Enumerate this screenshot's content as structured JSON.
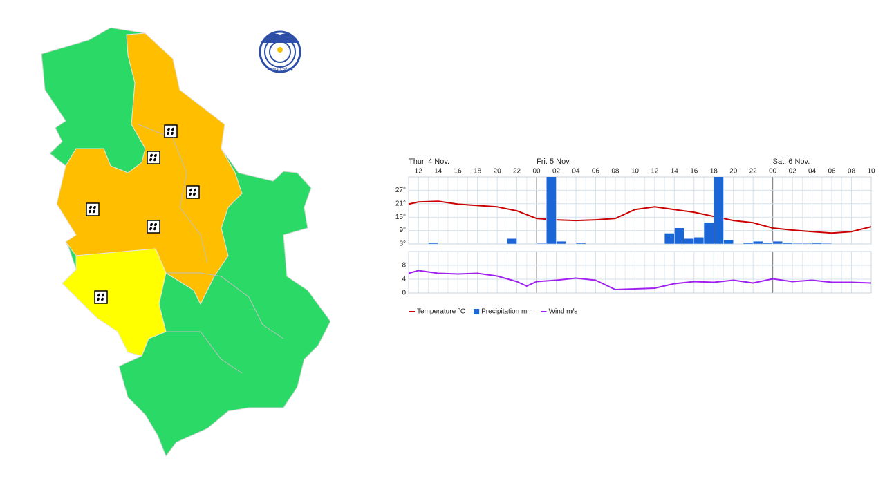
{
  "map": {
    "logo_text": "РХМЗ Србије"
  },
  "chart_data": [
    {
      "type": "line",
      "days": [
        {
          "label": "Thur. 4 Nov.",
          "x": 11
        },
        {
          "label": "Fri. 5 Nov.",
          "x": 24
        },
        {
          "label": "Sat. 6 Nov.",
          "x": 48
        }
      ],
      "xlim": [
        11,
        58
      ],
      "xticks": [
        12,
        14,
        16,
        18,
        20,
        22,
        {
          "value": 24,
          "label": "00"
        },
        {
          "value": 26,
          "label": "02"
        },
        {
          "value": 28,
          "label": "04"
        },
        {
          "value": 30,
          "label": "06"
        },
        {
          "value": 32,
          "label": "08"
        },
        {
          "value": 34,
          "label": "10"
        },
        {
          "value": 36,
          "label": "12"
        },
        {
          "value": 38,
          "label": "14"
        },
        {
          "value": 40,
          "label": "16"
        },
        {
          "value": 42,
          "label": "18"
        },
        {
          "value": 44,
          "label": "20"
        },
        {
          "value": 46,
          "label": "22"
        },
        {
          "value": 48,
          "label": "00"
        },
        {
          "value": 50,
          "label": "02"
        },
        {
          "value": 52,
          "label": "04"
        },
        {
          "value": 54,
          "label": "06"
        },
        {
          "value": 56,
          "label": "08"
        },
        {
          "value": 58,
          "label": "10"
        }
      ],
      "ylim": [
        3,
        33
      ],
      "yticks": [
        {
          "value": 3,
          "label": "3°"
        },
        {
          "value": 9,
          "label": "9°"
        },
        {
          "value": 15,
          "label": "15°"
        },
        {
          "value": 21,
          "label": "21°"
        },
        {
          "value": 27,
          "label": "27°"
        }
      ],
      "y2lim": [
        0,
        5
      ],
      "grid": true,
      "series": [
        {
          "name": "Temperature °C",
          "color": "#cc0000",
          "x": [
            11,
            12,
            14,
            16,
            18,
            20,
            22,
            24,
            26,
            28,
            30,
            32,
            34,
            36,
            38,
            40,
            42,
            44,
            46,
            48,
            50,
            52,
            54,
            56,
            58
          ],
          "values": [
            20.8,
            21.8,
            22.1,
            20.8,
            20.2,
            19.6,
            17.8,
            14.4,
            13.8,
            13.5,
            13.8,
            14.4,
            18.4,
            19.6,
            18.4,
            17.2,
            15.3,
            13.5,
            12.5,
            10.1,
            9.2,
            8.5,
            7.9,
            8.5,
            10.7
          ]
        },
        {
          "name": "Precipitation mm",
          "color": "#1a66d6",
          "axis": "y2",
          "bar": true,
          "x": [
            13,
            21,
            24,
            25,
            26,
            28,
            37,
            38,
            39,
            40,
            41,
            42,
            43,
            45,
            46,
            47,
            48,
            49,
            50,
            51,
            52,
            53
          ],
          "values": [
            0.1,
            0.4,
            0.05,
            6,
            0.2,
            0.1,
            0.8,
            1.2,
            0.4,
            0.5,
            1.6,
            6,
            0.3,
            0.1,
            0.2,
            0.1,
            0.2,
            0.1,
            0.05,
            0.05,
            0.1,
            0.05
          ]
        }
      ]
    },
    {
      "type": "line",
      "xlim": [
        11,
        58
      ],
      "ylim": [
        0,
        12
      ],
      "yticks": [
        0,
        4,
        8
      ],
      "grid": true,
      "series": [
        {
          "name": "Wind m/s",
          "color": "#a020f0",
          "x": [
            11,
            12,
            14,
            16,
            18,
            20,
            22,
            23,
            24,
            26,
            28,
            30,
            32,
            34,
            36,
            38,
            40,
            42,
            44,
            46,
            48,
            50,
            52,
            54,
            56,
            58
          ],
          "values": [
            5.7,
            6.5,
            5.7,
            5.5,
            5.7,
            4.9,
            3.3,
            2.0,
            3.3,
            3.7,
            4.3,
            3.7,
            1.0,
            1.2,
            1.4,
            2.7,
            3.3,
            3.1,
            3.7,
            2.9,
            4.1,
            3.3,
            3.7,
            3.1,
            3.1,
            2.9
          ]
        }
      ]
    }
  ]
}
